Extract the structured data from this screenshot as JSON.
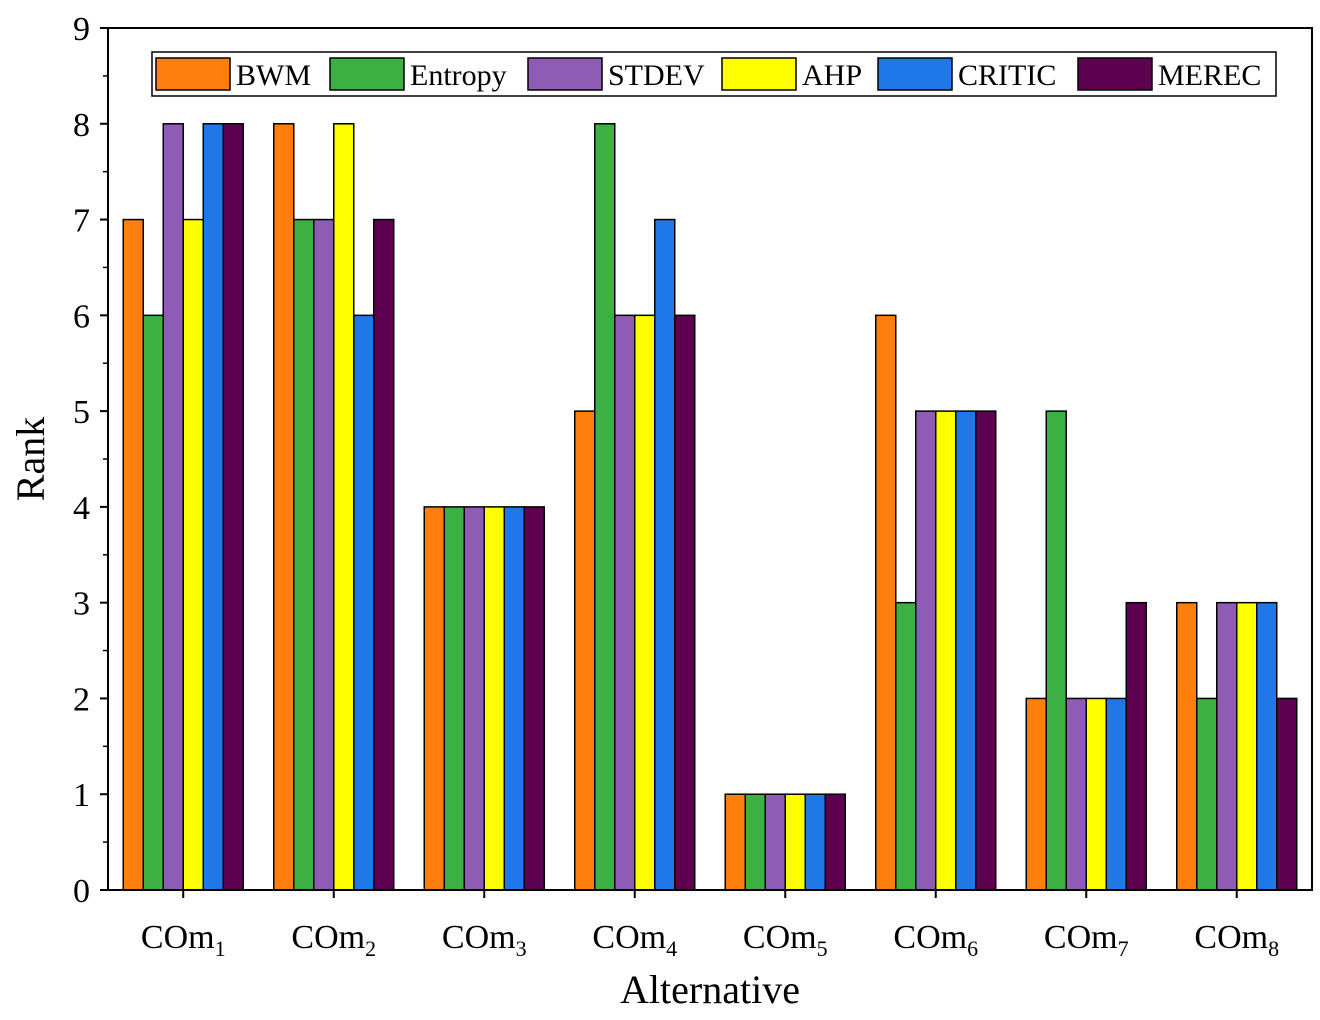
{
  "chart_data": {
    "type": "bar",
    "xlabel": "Alternative",
    "ylabel": "Rank",
    "ylim": [
      0,
      9
    ],
    "yticks": [
      0,
      1,
      2,
      3,
      4,
      5,
      6,
      7,
      8,
      9
    ],
    "grid": false,
    "legend_position": "top",
    "categories": [
      {
        "main": "COm",
        "sub": "1"
      },
      {
        "main": "COm",
        "sub": "2"
      },
      {
        "main": "COm",
        "sub": "3"
      },
      {
        "main": "COm",
        "sub": "4"
      },
      {
        "main": "COm",
        "sub": "5"
      },
      {
        "main": "COm",
        "sub": "6"
      },
      {
        "main": "COm",
        "sub": "7"
      },
      {
        "main": "COm",
        "sub": "8"
      }
    ],
    "series": [
      {
        "name": "BWM",
        "color": "#FF7F0E",
        "values": [
          7,
          8,
          4,
          5,
          1,
          6,
          2,
          3
        ]
      },
      {
        "name": "Entropy",
        "color": "#3CB043",
        "values": [
          6,
          7,
          4,
          8,
          1,
          3,
          5,
          2
        ]
      },
      {
        "name": "STDEV",
        "color": "#8E5BB5",
        "values": [
          8,
          7,
          4,
          6,
          1,
          5,
          2,
          3
        ]
      },
      {
        "name": "AHP",
        "color": "#FFFF00",
        "values": [
          7,
          8,
          4,
          6,
          1,
          5,
          2,
          3
        ]
      },
      {
        "name": "CRITIC",
        "color": "#1F77E8",
        "values": [
          8,
          6,
          4,
          7,
          1,
          5,
          2,
          3
        ]
      },
      {
        "name": "MEREC",
        "color": "#5E0050",
        "values": [
          8,
          7,
          4,
          6,
          1,
          5,
          3,
          2
        ]
      }
    ]
  }
}
